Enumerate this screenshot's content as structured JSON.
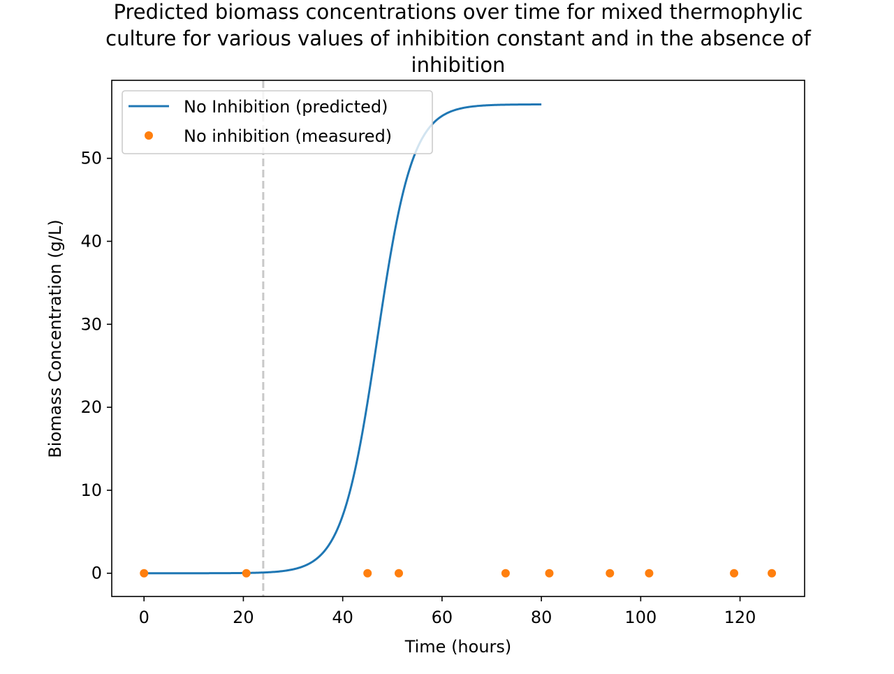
{
  "chart_data": {
    "type": "line",
    "title_lines": [
      "Predicted biomass concentrations over time for mixed thermophylic",
      "culture for various values of inhibition constant and in the absence of",
      "inhibition"
    ],
    "xlabel": "Time (hours)",
    "ylabel": "Biomass Concentration (g/L)",
    "xlim": [
      -6.5,
      133
    ],
    "ylim": [
      -2.8,
      59.4
    ],
    "x_ticks": [
      0,
      20,
      40,
      60,
      80,
      100,
      120
    ],
    "y_ticks": [
      0,
      10,
      20,
      30,
      40,
      50
    ],
    "grid": false,
    "legend_position": "upper-left",
    "vertical_reference_line": {
      "x": 24,
      "style": "dashed",
      "color": "#c8c8c8"
    },
    "series": [
      {
        "name": "No Inhibition (predicted)",
        "kind": "line",
        "color": "#1f77b4",
        "model": "logistic",
        "x_range": [
          0,
          80
        ],
        "initial_value": 0.0001,
        "capacity": 56.5,
        "rate": 0.282
      },
      {
        "name": "No inhibition (measured)",
        "kind": "points",
        "color": "#ff7f0e",
        "x": [
          0,
          20.6,
          45,
          51.3,
          72.8,
          81.6,
          93.8,
          101.7,
          118.8,
          126.4
        ],
        "y": [
          0,
          0,
          0,
          0,
          0,
          0,
          0,
          0,
          0,
          0
        ]
      }
    ]
  }
}
